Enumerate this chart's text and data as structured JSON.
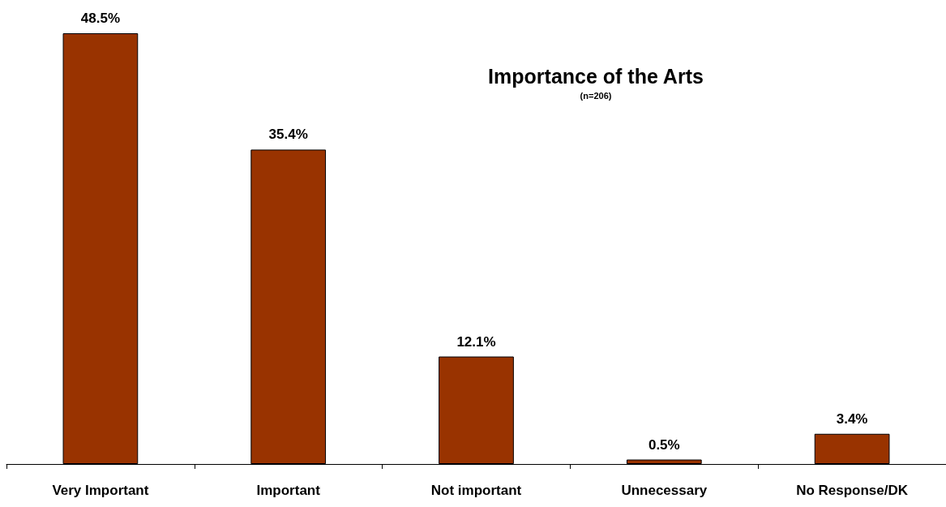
{
  "chart_data": {
    "type": "bar",
    "title": "Importance of the Arts",
    "subtitle": "(n=206)",
    "categories": [
      "Very Important",
      "Important",
      "Not important",
      "Unnecessary",
      "No Response/DK"
    ],
    "values": [
      48.5,
      35.4,
      12.1,
      0.5,
      3.4
    ],
    "value_labels": [
      "48.5%",
      "35.4%",
      "12.1%",
      "0.5%",
      "3.4%"
    ],
    "color": "#993300"
  }
}
